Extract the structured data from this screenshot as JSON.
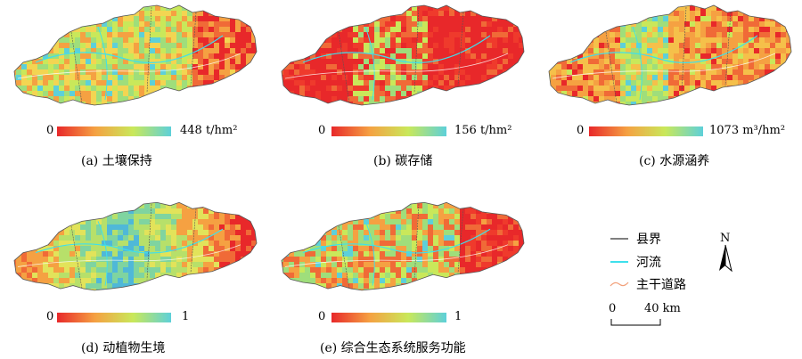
{
  "panels": [
    {
      "id": "a",
      "min": "0",
      "max": "448 t/hm²",
      "caption": "(a) 土壤保持",
      "gradient": [
        "#e8282a",
        "#f5a142",
        "#c9e85a",
        "#5dd0d9"
      ],
      "palette": [
        "#e8282a",
        "#f06a37",
        "#f5a142",
        "#f3d552",
        "#c9e85a",
        "#9fde7b",
        "#5dd0d9"
      ],
      "dominant": "mixed"
    },
    {
      "id": "b",
      "min": "0",
      "max": "156 t/hm²",
      "caption": "(b) 碳存储",
      "gradient": [
        "#e8282a",
        "#f5a142",
        "#c9e85a",
        "#5dd0d9"
      ],
      "palette": [
        "#e8282a",
        "#e8282a",
        "#ef3a2c",
        "#f06a37",
        "#c9e85a",
        "#9fde7b",
        "#5dd0d9"
      ],
      "dominant": "red"
    },
    {
      "id": "c",
      "min": "0",
      "max": "1073 m³/hm²",
      "caption": "(c) 水源涵养",
      "gradient": [
        "#e8282a",
        "#f5a142",
        "#c9e85a",
        "#5dd0d9"
      ],
      "palette": [
        "#e8282a",
        "#f06a37",
        "#f5a142",
        "#f5c04a",
        "#c9e85a",
        "#9fde7b",
        "#5dd0d9"
      ],
      "dominant": "orange"
    },
    {
      "id": "d",
      "min": "0",
      "max": "1",
      "caption": "(d) 动植物生境",
      "gradient": [
        "#e8282a",
        "#f5a142",
        "#c9e85a",
        "#5dd0d9"
      ],
      "palette": [
        "#e8282a",
        "#f06a37",
        "#f5a142",
        "#e2e35a",
        "#b7e06a",
        "#7fd4a0",
        "#4fb8d8"
      ],
      "dominant": "gradient"
    },
    {
      "id": "e",
      "min": "0",
      "max": "1",
      "caption": "(e) 综合生态系统服务功能",
      "gradient": [
        "#e8282a",
        "#f5a142",
        "#c9e85a",
        "#5dd0d9"
      ],
      "palette": [
        "#e8282a",
        "#ef3a2c",
        "#f06a37",
        "#f5a142",
        "#c9e85a",
        "#9fde7b",
        "#5dd0d9"
      ],
      "dominant": "mixed"
    }
  ],
  "legend": {
    "county_boundary": "县界",
    "river": "河流",
    "main_road": "主干道路",
    "north_label": "N",
    "scale_zero": "0",
    "scale_distance": "40 km"
  },
  "colors": {
    "county_boundary": "#555555",
    "river": "#3fe0ec",
    "road": "#f2a07a"
  }
}
